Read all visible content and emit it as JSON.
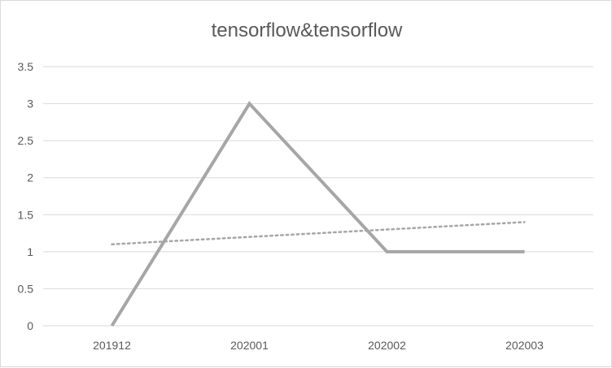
{
  "chart_data": {
    "type": "line",
    "title": "tensorflow&tensorflow",
    "xlabel": "",
    "ylabel": "",
    "categories": [
      "201912",
      "202001",
      "202002",
      "202003"
    ],
    "series": [
      {
        "values": [
          0,
          3,
          1,
          1
        ],
        "color": "#a6a6a6",
        "style": "solid"
      }
    ],
    "trendline": {
      "type": "linear",
      "values": [
        1.1,
        1.2,
        1.3,
        1.4
      ],
      "color": "#a6a6a6",
      "style": "dotted"
    },
    "ylim": [
      0,
      3.5
    ],
    "yticks": [
      "0",
      "0.5",
      "1",
      "1.5",
      "2",
      "2.5",
      "3",
      "3.5"
    ],
    "grid": true,
    "legend": "none"
  }
}
